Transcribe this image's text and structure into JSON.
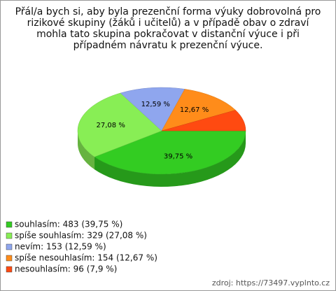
{
  "chart_data": {
    "type": "pie3d",
    "title": "Přál/a bych si, aby byla prezenční forma výuky dobrovolná pro rizikové skupiny (žáků i učitelů) a v případě obav o zdraví mohla tato skupina pokračovat v distanční výuce i při případném návratu k prezenční výuce.",
    "categories": [
      "souhlasím: 483 (39,75 %)",
      "spíše souhlasím: 329 (27,08 %)",
      "nevím: 153 (12,59 %)",
      "spíše nesouhlasím: 154 (12,67 %)",
      "nesouhlasím: 96 (7,9 %)"
    ],
    "values": [
      39.75,
      27.08,
      12.59,
      12.67,
      7.9
    ],
    "value_labels": [
      "39,75 %",
      "27,08 %",
      "12,59 %",
      "12,67 %",
      null
    ],
    "colors": [
      "#33cc22",
      "#88ee55",
      "#8fa6ee",
      "#ff8c1a",
      "#ff4a11"
    ],
    "source": "zdroj: https://73497.vyplnto.cz"
  }
}
